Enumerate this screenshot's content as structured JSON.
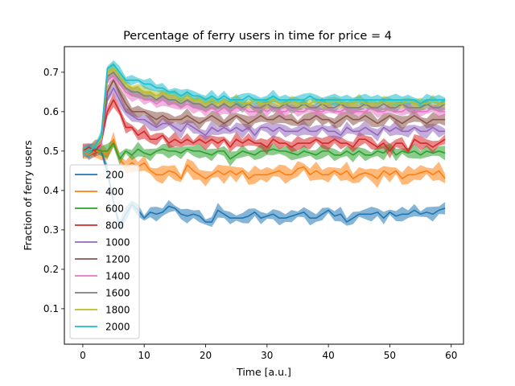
{
  "chart_data": {
    "type": "line",
    "title": "Percentage of ferry users in time for price = 4",
    "xlabel": "Time [a.u.]",
    "ylabel": "Fraction of ferry users",
    "xlim": [
      -3,
      62
    ],
    "ylim": [
      0.01,
      0.765
    ],
    "xticks": [
      0,
      10,
      20,
      30,
      40,
      50,
      60
    ],
    "yticks": [
      0.1,
      0.2,
      0.3,
      0.4,
      0.5,
      0.6,
      0.7
    ],
    "grid": false,
    "legend_position": "lower-left",
    "series": [
      {
        "name": "200",
        "color": "#1f77b4",
        "band": 0.012,
        "values": [
          0.5,
          0.49,
          0.505,
          0.5,
          0.45,
          0.37,
          0.31,
          0.34,
          0.365,
          0.35,
          0.33,
          0.345,
          0.34,
          0.345,
          0.36,
          0.355,
          0.34,
          0.335,
          0.34,
          0.335,
          0.32,
          0.32,
          0.35,
          0.34,
          0.33,
          0.33,
          0.33,
          0.335,
          0.345,
          0.33,
          0.335,
          0.34,
          0.33,
          0.33,
          0.335,
          0.34,
          0.345,
          0.33,
          0.33,
          0.34,
          0.35,
          0.335,
          0.34,
          0.32,
          0.33,
          0.34,
          0.34,
          0.34,
          0.345,
          0.33,
          0.345,
          0.335,
          0.34,
          0.34,
          0.35,
          0.34,
          0.345,
          0.34,
          0.35,
          0.355
        ]
      },
      {
        "name": "400",
        "color": "#ff7f0e",
        "band": 0.015,
        "values": [
          0.5,
          0.49,
          0.5,
          0.5,
          0.49,
          0.53,
          0.48,
          0.46,
          0.47,
          0.46,
          0.47,
          0.45,
          0.44,
          0.44,
          0.45,
          0.445,
          0.43,
          0.465,
          0.45,
          0.44,
          0.43,
          0.44,
          0.45,
          0.44,
          0.45,
          0.44,
          0.45,
          0.43,
          0.44,
          0.44,
          0.44,
          0.445,
          0.45,
          0.44,
          0.44,
          0.455,
          0.46,
          0.44,
          0.45,
          0.44,
          0.44,
          0.45,
          0.44,
          0.45,
          0.43,
          0.44,
          0.445,
          0.44,
          0.43,
          0.45,
          0.44,
          0.45,
          0.43,
          0.44,
          0.44,
          0.445,
          0.45,
          0.44,
          0.45,
          0.43
        ]
      },
      {
        "name": "600",
        "color": "#2ca02c",
        "band": 0.012,
        "values": [
          0.5,
          0.5,
          0.505,
          0.5,
          0.5,
          0.52,
          0.48,
          0.5,
          0.49,
          0.505,
          0.495,
          0.49,
          0.5,
          0.505,
          0.5,
          0.5,
          0.495,
          0.505,
          0.5,
          0.5,
          0.495,
          0.49,
          0.5,
          0.5,
          0.48,
          0.49,
          0.5,
          0.495,
          0.49,
          0.5,
          0.5,
          0.505,
          0.5,
          0.5,
          0.495,
          0.49,
          0.5,
          0.495,
          0.49,
          0.5,
          0.5,
          0.49,
          0.49,
          0.5,
          0.49,
          0.5,
          0.49,
          0.49,
          0.5,
          0.495,
          0.51,
          0.49,
          0.5,
          0.495,
          0.5,
          0.49,
          0.5,
          0.495,
          0.5,
          0.495
        ]
      },
      {
        "name": "800",
        "color": "#d62728",
        "band": 0.012,
        "values": [
          0.5,
          0.51,
          0.5,
          0.52,
          0.6,
          0.63,
          0.6,
          0.56,
          0.56,
          0.54,
          0.55,
          0.53,
          0.53,
          0.54,
          0.52,
          0.53,
          0.52,
          0.53,
          0.52,
          0.53,
          0.52,
          0.53,
          0.52,
          0.53,
          0.51,
          0.53,
          0.52,
          0.53,
          0.52,
          0.52,
          0.51,
          0.53,
          0.52,
          0.52,
          0.51,
          0.52,
          0.52,
          0.52,
          0.53,
          0.52,
          0.52,
          0.53,
          0.52,
          0.52,
          0.51,
          0.53,
          0.53,
          0.52,
          0.51,
          0.52,
          0.5,
          0.52,
          0.52,
          0.5,
          0.53,
          0.52,
          0.52,
          0.51,
          0.52,
          0.53
        ]
      },
      {
        "name": "1000",
        "color": "#9467bd",
        "band": 0.012,
        "values": [
          0.5,
          0.5,
          0.51,
          0.52,
          0.63,
          0.66,
          0.63,
          0.6,
          0.59,
          0.58,
          0.58,
          0.57,
          0.56,
          0.57,
          0.57,
          0.56,
          0.55,
          0.57,
          0.56,
          0.55,
          0.54,
          0.56,
          0.55,
          0.56,
          0.55,
          0.56,
          0.55,
          0.56,
          0.54,
          0.56,
          0.56,
          0.55,
          0.56,
          0.55,
          0.55,
          0.55,
          0.56,
          0.55,
          0.55,
          0.56,
          0.55,
          0.55,
          0.54,
          0.56,
          0.55,
          0.55,
          0.56,
          0.55,
          0.54,
          0.56,
          0.55,
          0.56,
          0.55,
          0.55,
          0.56,
          0.55,
          0.55,
          0.56,
          0.55,
          0.55
        ]
      },
      {
        "name": "1200",
        "color": "#8c564b",
        "band": 0.012,
        "values": [
          0.5,
          0.5,
          0.51,
          0.52,
          0.65,
          0.68,
          0.65,
          0.62,
          0.6,
          0.6,
          0.6,
          0.59,
          0.58,
          0.59,
          0.58,
          0.58,
          0.58,
          0.59,
          0.58,
          0.57,
          0.58,
          0.59,
          0.58,
          0.57,
          0.58,
          0.59,
          0.58,
          0.57,
          0.58,
          0.59,
          0.58,
          0.58,
          0.59,
          0.58,
          0.58,
          0.57,
          0.58,
          0.58,
          0.59,
          0.58,
          0.58,
          0.57,
          0.58,
          0.59,
          0.58,
          0.58,
          0.59,
          0.58,
          0.57,
          0.58,
          0.59,
          0.58,
          0.57,
          0.58,
          0.59,
          0.58,
          0.57,
          0.58,
          0.58,
          0.58
        ]
      },
      {
        "name": "1400",
        "color": "#e377c2",
        "band": 0.01,
        "values": [
          0.5,
          0.5,
          0.51,
          0.52,
          0.68,
          0.69,
          0.67,
          0.65,
          0.64,
          0.64,
          0.63,
          0.63,
          0.62,
          0.63,
          0.62,
          0.62,
          0.61,
          0.62,
          0.61,
          0.61,
          0.6,
          0.61,
          0.6,
          0.61,
          0.6,
          0.61,
          0.61,
          0.6,
          0.6,
          0.61,
          0.6,
          0.61,
          0.6,
          0.6,
          0.61,
          0.6,
          0.6,
          0.61,
          0.6,
          0.6,
          0.61,
          0.6,
          0.6,
          0.61,
          0.6,
          0.6,
          0.6,
          0.61,
          0.6,
          0.6,
          0.61,
          0.6,
          0.6,
          0.61,
          0.6,
          0.6,
          0.6,
          0.61,
          0.6,
          0.6
        ]
      },
      {
        "name": "1600",
        "color": "#7f7f7f",
        "band": 0.01,
        "values": [
          0.5,
          0.5,
          0.51,
          0.53,
          0.69,
          0.7,
          0.68,
          0.66,
          0.65,
          0.65,
          0.64,
          0.64,
          0.63,
          0.64,
          0.63,
          0.63,
          0.62,
          0.63,
          0.62,
          0.62,
          0.61,
          0.62,
          0.61,
          0.62,
          0.61,
          0.62,
          0.61,
          0.62,
          0.61,
          0.61,
          0.62,
          0.61,
          0.61,
          0.62,
          0.61,
          0.61,
          0.62,
          0.61,
          0.61,
          0.62,
          0.61,
          0.61,
          0.62,
          0.61,
          0.61,
          0.61,
          0.62,
          0.61,
          0.61,
          0.62,
          0.61,
          0.61,
          0.62,
          0.61,
          0.61,
          0.61,
          0.62,
          0.61,
          0.61,
          0.62
        ]
      },
      {
        "name": "1800",
        "color": "#bcbd22",
        "band": 0.01,
        "values": [
          0.5,
          0.5,
          0.51,
          0.53,
          0.7,
          0.71,
          0.69,
          0.67,
          0.66,
          0.66,
          0.65,
          0.65,
          0.64,
          0.65,
          0.64,
          0.64,
          0.63,
          0.64,
          0.63,
          0.63,
          0.62,
          0.63,
          0.62,
          0.63,
          0.62,
          0.63,
          0.62,
          0.62,
          0.63,
          0.62,
          0.62,
          0.63,
          0.62,
          0.62,
          0.63,
          0.62,
          0.62,
          0.62,
          0.63,
          0.62,
          0.62,
          0.63,
          0.62,
          0.62,
          0.62,
          0.63,
          0.62,
          0.62,
          0.62,
          0.63,
          0.62,
          0.62,
          0.62,
          0.63,
          0.62,
          0.62,
          0.62,
          0.63,
          0.62,
          0.62
        ]
      },
      {
        "name": "2000",
        "color": "#17becf",
        "band": 0.01,
        "values": [
          0.5,
          0.5,
          0.51,
          0.54,
          0.71,
          0.72,
          0.7,
          0.68,
          0.68,
          0.68,
          0.67,
          0.67,
          0.66,
          0.66,
          0.65,
          0.65,
          0.64,
          0.65,
          0.64,
          0.64,
          0.63,
          0.64,
          0.63,
          0.64,
          0.63,
          0.63,
          0.63,
          0.64,
          0.63,
          0.63,
          0.63,
          0.64,
          0.63,
          0.63,
          0.63,
          0.63,
          0.63,
          0.64,
          0.63,
          0.63,
          0.63,
          0.63,
          0.63,
          0.63,
          0.63,
          0.63,
          0.63,
          0.63,
          0.63,
          0.63,
          0.63,
          0.63,
          0.63,
          0.63,
          0.63,
          0.62,
          0.63,
          0.63,
          0.63,
          0.63
        ]
      }
    ]
  }
}
